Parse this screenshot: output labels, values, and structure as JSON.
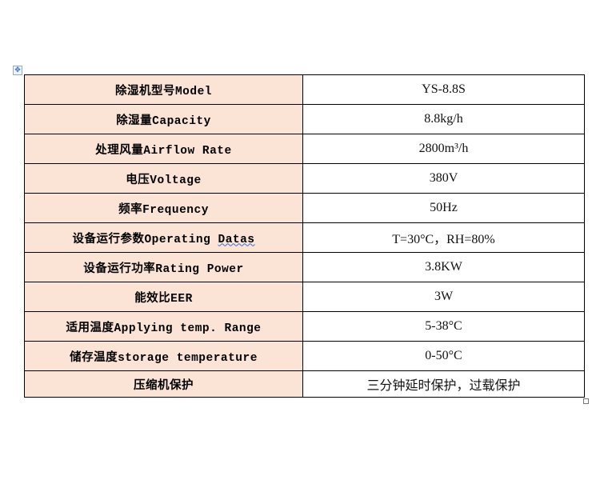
{
  "table": {
    "rows": [
      {
        "label": "除湿机型号Model",
        "value": "YS-8.8S"
      },
      {
        "label": "除湿量Capacity",
        "value": "8.8kg/h"
      },
      {
        "label": "处理风量Airflow Rate",
        "value": "2800m³/h"
      },
      {
        "label": "电压Voltage",
        "value": "380V"
      },
      {
        "label": "频率Frequency",
        "value": "50Hz"
      },
      {
        "label_prefix": "设备运行参数Operating ",
        "label_flagged": "Datas",
        "value": "T=30°C，RH=80%"
      },
      {
        "label": "设备运行功率Rating Power",
        "value": "3.8KW"
      },
      {
        "label": "能效比EER",
        "value": "3W"
      },
      {
        "label": "适用温度Applying temp. Range",
        "value": "5-38°C"
      },
      {
        "label": "储存温度storage temperature",
        "value": "0-50°C"
      },
      {
        "label": "压缩机保护",
        "value": "三分钟延时保护，过载保护"
      }
    ]
  },
  "colors": {
    "label_background": "#fbe4d5",
    "border": "#000000"
  },
  "icons": {
    "table_move_handle": "move-arrows-icon",
    "table_resize_handle": "resize-square-icon"
  }
}
